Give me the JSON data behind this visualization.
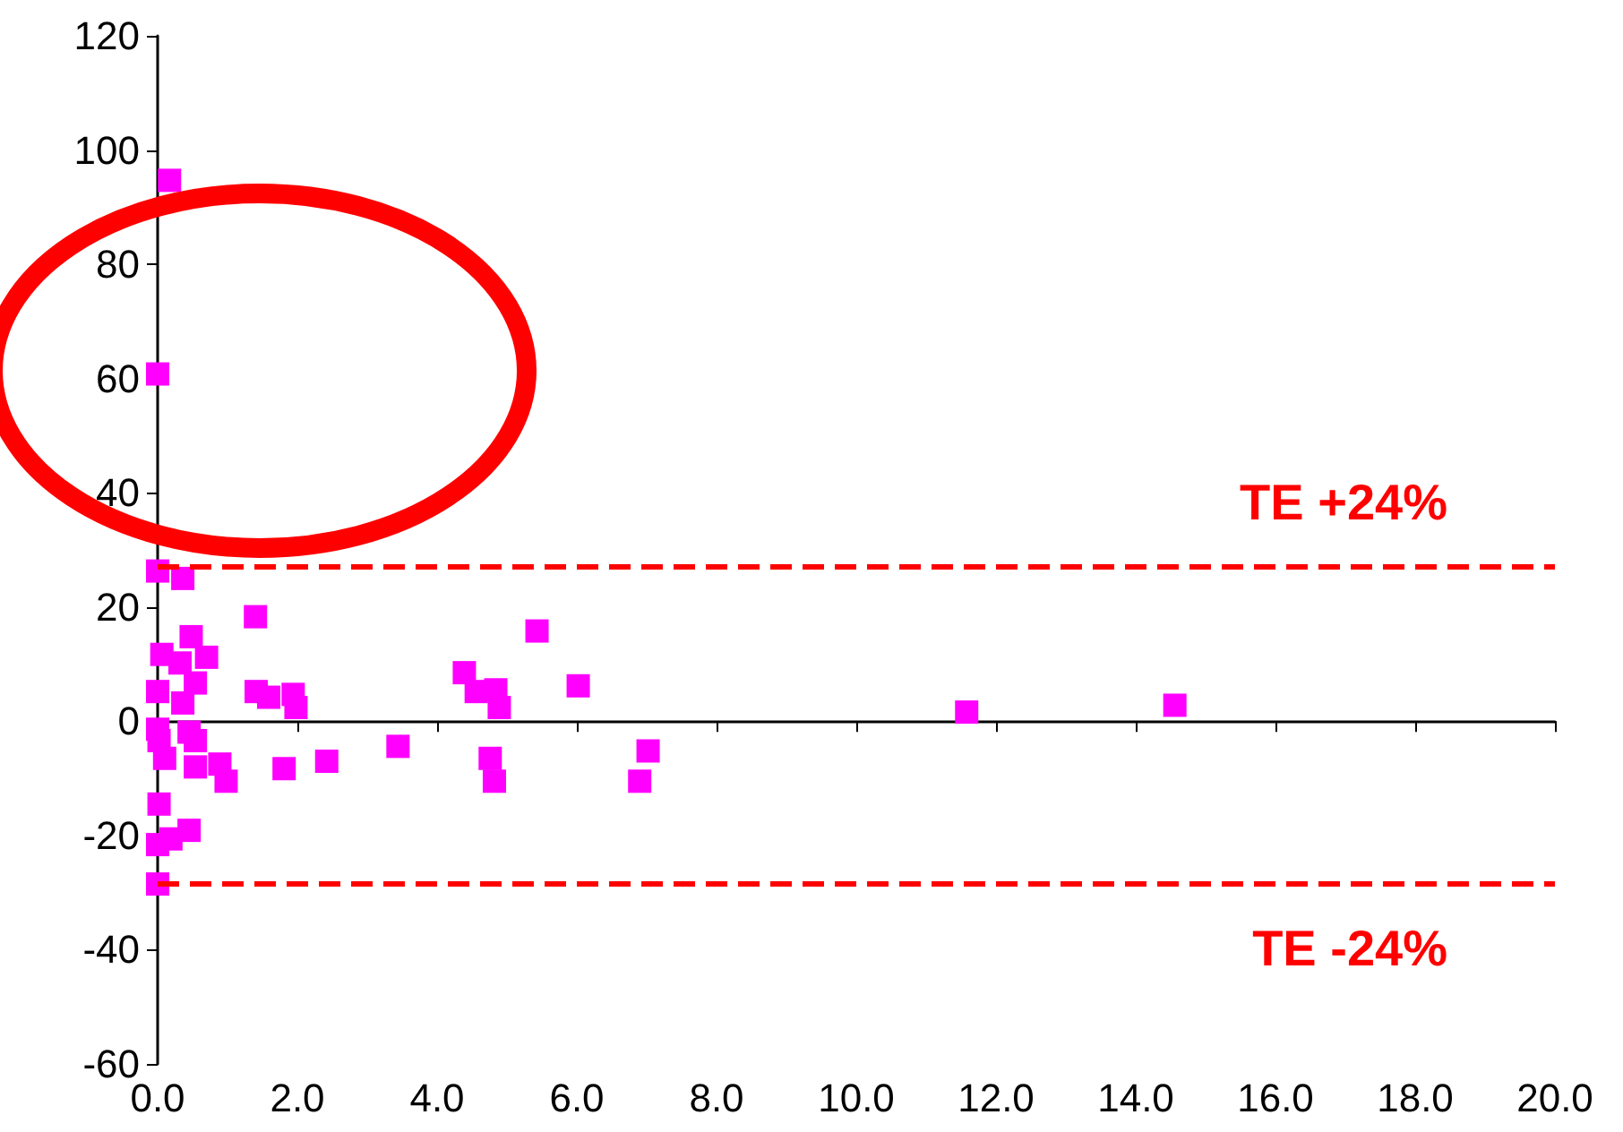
{
  "chart_data": {
    "type": "scatter",
    "marker": "square",
    "x": [
      0.17,
      0.0,
      0.0,
      0.36,
      1.4,
      0.48,
      0.06,
      0.7,
      0.32,
      0.0,
      0.54,
      0.36,
      1.41,
      1.59,
      1.94,
      1.98,
      0.0,
      0.45,
      0.02,
      0.54,
      0.1,
      0.89,
      0.54,
      0.98,
      1.81,
      2.42,
      3.44,
      0.02,
      0.45,
      0.19,
      0.0,
      0.0,
      5.43,
      4.39,
      4.56,
      4.84,
      4.89,
      6.02,
      11.58,
      4.76,
      4.82,
      7.02,
      6.9,
      14.56
    ],
    "series": [
      {
        "color": "#ff00ff",
        "values": [
          94.7,
          60.8,
          26.3,
          25,
          18.3,
          14.8,
          11.7,
          11.2,
          10.2,
          5.2,
          6.7,
          3.2,
          5.2,
          4.2,
          4.7,
          2.4,
          -1.4,
          -1.9,
          -3.4,
          -3.4,
          -6.5,
          -7.5,
          -8,
          -10.5,
          -8.3,
          -7,
          -4.4,
          -14.5,
          -19.1,
          -20.6,
          -21.6,
          -28.5,
          15.8,
          8.5,
          5.2,
          5.5,
          2.4,
          6.2,
          1.6,
          -6.5,
          -10.5,
          -5.2,
          -10.5,
          2.8
        ]
      }
    ],
    "xlim": [
      0,
      20
    ],
    "xticks": [
      {
        "value": 0,
        "label": "0.0"
      },
      {
        "value": 2,
        "label": "2.0"
      },
      {
        "value": 4,
        "label": "4.0"
      },
      {
        "value": 6,
        "label": "6.0"
      },
      {
        "value": 8,
        "label": "8.0"
      },
      {
        "value": 10,
        "label": "10.0"
      },
      {
        "value": 12,
        "label": "12.0"
      },
      {
        "value": 14,
        "label": "14.0"
      },
      {
        "value": 16,
        "label": "16.0"
      },
      {
        "value": 18,
        "label": "18.0"
      },
      {
        "value": 20,
        "label": "20.0"
      }
    ],
    "ylim": [
      -60,
      120
    ],
    "yticks": [
      -60,
      -40,
      -20,
      0,
      20,
      40,
      60,
      80,
      100,
      120
    ],
    "ref_lines": [
      {
        "axis": "y",
        "value": 27,
        "label": "TE +24%",
        "color": "#ff0000",
        "line_style": "dashed"
      },
      {
        "axis": "y",
        "value": -28.5,
        "label": "TE -24%",
        "color": "#ff0000",
        "line_style": "dashed"
      }
    ]
  }
}
